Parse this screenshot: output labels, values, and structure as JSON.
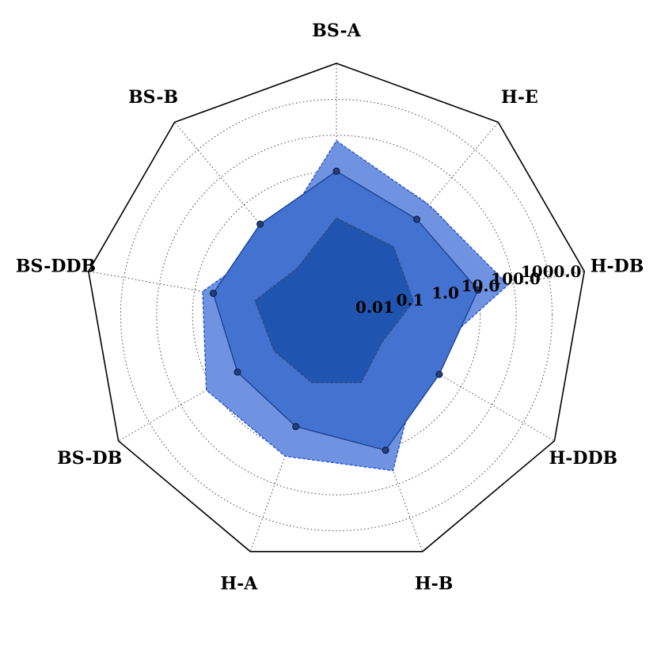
{
  "chart_data": {
    "type": "radar",
    "scale": "log",
    "rlim": [
      0.001,
      10000
    ],
    "grid": "dotted",
    "axes": [
      "BS-A",
      "H-E",
      "H-DB",
      "H-DDB",
      "H-B",
      "H-A",
      "BS-DB",
      "BS-DDB",
      "BS-B"
    ],
    "rticks": [
      0.01,
      0.1,
      1.0,
      10.0,
      100.0,
      1000.0
    ],
    "rtick_labels": [
      "0.01",
      "0.1",
      "1.0",
      "10.0",
      "100.0",
      "1000.0"
    ],
    "series": [
      {
        "values": [
          70,
          10,
          70,
          0.5,
          40,
          15,
          15,
          6,
          0.5
        ],
        "color": "#6f93e0",
        "edge": "#1f4fd6",
        "style": "dashed"
      },
      {
        "values": [
          10,
          3,
          10,
          2,
          10,
          2,
          1.5,
          3,
          2
        ],
        "color": "#4472d0",
        "edge": "#1a3f8f",
        "style": "solid",
        "markers": true
      },
      {
        "values": [
          0.5,
          0.3,
          0.15,
          0.03,
          0.1,
          0.1,
          0.1,
          0.2,
          0.05
        ],
        "color": "#1f55b0",
        "edge": "#2a4a80",
        "style": "dashed"
      }
    ]
  }
}
